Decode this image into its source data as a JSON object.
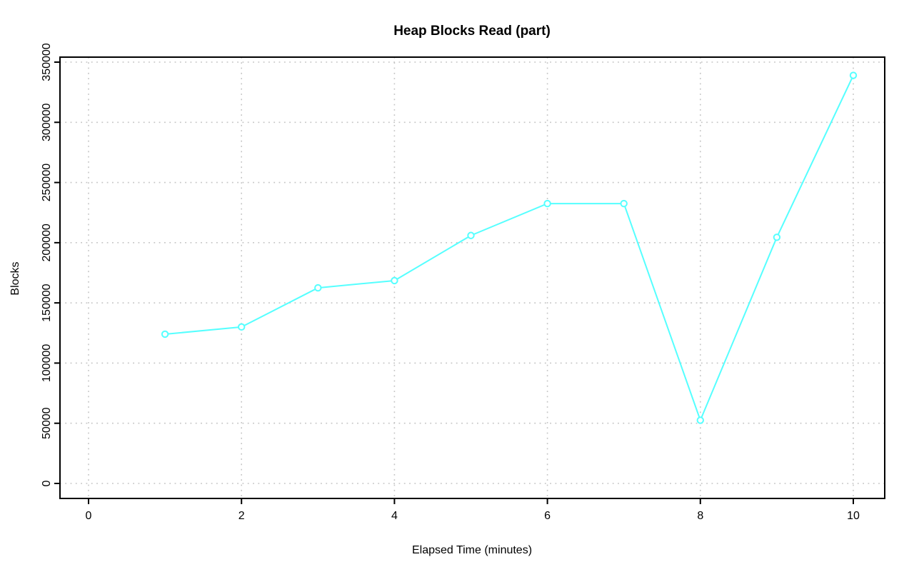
{
  "chart_data": {
    "type": "line",
    "title": "Heap Blocks Read (part)",
    "xlabel": "Elapsed Time (minutes)",
    "ylabel": "Blocks",
    "x": [
      1,
      2,
      3,
      4,
      5,
      6,
      7,
      8,
      9,
      10
    ],
    "values": [
      124000,
      130000,
      162500,
      168500,
      206000,
      232500,
      232500,
      52500,
      204500,
      339000
    ],
    "series": [
      {
        "name": "Heap Blocks Read",
        "values": [
          124000,
          130000,
          162500,
          168500,
          206000,
          232500,
          232500,
          52500,
          204500,
          339000
        ]
      }
    ],
    "x_ticks": [
      0,
      2,
      4,
      6,
      8,
      10
    ],
    "y_ticks": [
      0,
      50000,
      100000,
      150000,
      200000,
      250000,
      300000,
      350000
    ],
    "xlim": [
      0,
      10
    ],
    "ylim": [
      0,
      350000
    ],
    "grid": true,
    "grid_style": "dotted",
    "legend_position": "none",
    "marker": "open-circle",
    "series_color": "#55FFFF",
    "grid_color": "#C4C4C4",
    "axis_color": "#000000",
    "background_color": "#FFFFFF"
  }
}
